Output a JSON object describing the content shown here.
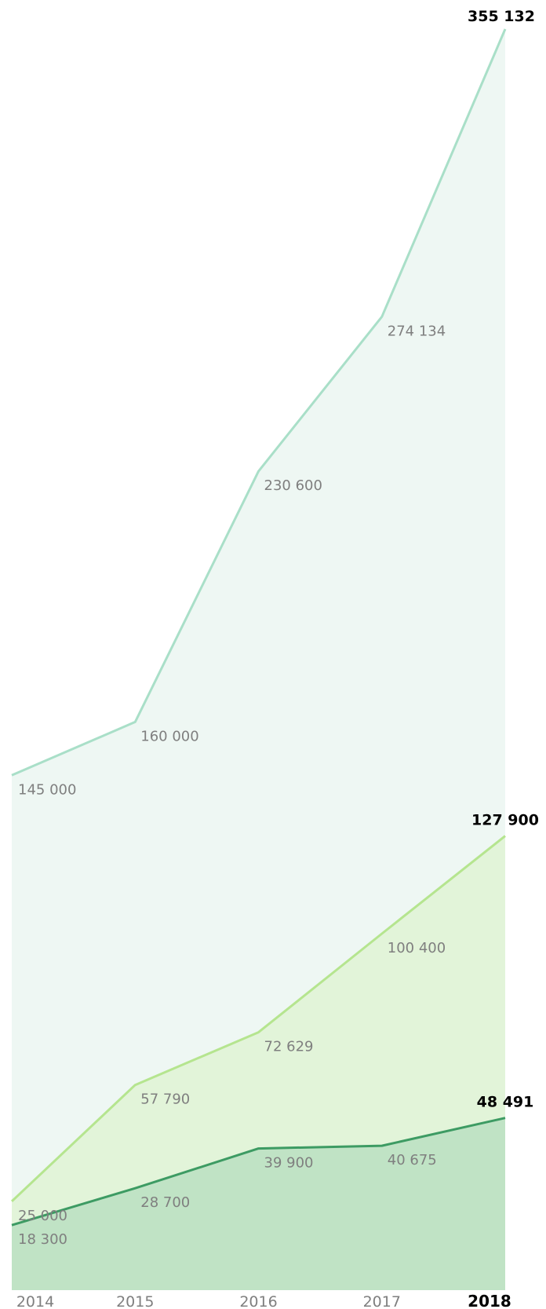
{
  "chart_data": {
    "type": "area",
    "categories": [
      "2014",
      "2015",
      "2016",
      "2017",
      "2018"
    ],
    "series": [
      {
        "color": "#a9dfc8",
        "fill": "#eef7f3",
        "values": [
          145000,
          160000,
          230600,
          274134,
          355132
        ],
        "labels": [
          "145 000",
          "160 000",
          "230 600",
          "274 134",
          "355 132"
        ]
      },
      {
        "color": "#b5e58f",
        "fill": "#e2f4d9",
        "values": [
          25000,
          57790,
          72629,
          100400,
          127900
        ],
        "labels": [
          "25 000",
          "57 790",
          "72 629",
          "100 400",
          "127 900"
        ]
      },
      {
        "color": "#3d9b63",
        "fill": "#c0e3c5",
        "values": [
          18300,
          28700,
          39900,
          40675,
          48491
        ],
        "labels": [
          "18 300",
          "28 700",
          "39 900",
          "40 675",
          "48 491"
        ]
      }
    ],
    "ylim": [
      0,
      361000
    ],
    "grid": false,
    "legend": "none"
  }
}
